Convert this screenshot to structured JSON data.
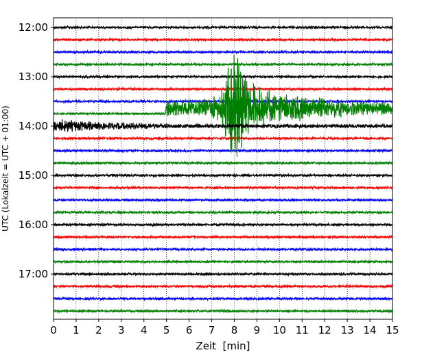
{
  "chart_data": {
    "type": "line",
    "title": "",
    "xlabel": "Zeit  [min]",
    "ylabel": "UTC (Lokalzeit = UTC + 01:00)",
    "xlim": [
      0,
      15
    ],
    "x_ticks": [
      0,
      1,
      2,
      3,
      4,
      5,
      6,
      7,
      8,
      9,
      10,
      11,
      12,
      13,
      14,
      15
    ],
    "y_tick_labels": [
      "12:00",
      "13:00",
      "14:00",
      "15:00",
      "16:00",
      "17:00"
    ],
    "grid": "vertical dotted at each minute",
    "trace_interval_minutes": 15,
    "trace_count": 24,
    "first_trace": "12:00",
    "colors_cycle": [
      "#000000",
      "#ff0000",
      "#0000ff",
      "#008000"
    ],
    "series": [
      {
        "trace": "13:45",
        "color": "#008000",
        "description_points": [
          {
            "x": 0,
            "y": 0
          },
          {
            "x": 4.95,
            "y": 0
          },
          {
            "x": 5.0,
            "y": 0.6
          },
          {
            "x": 6.5,
            "y": 0.7
          },
          {
            "x": 7.4,
            "y": 1.2
          },
          {
            "x": 7.8,
            "y": 4.0
          },
          {
            "x": 8.0,
            "y": 5.5
          },
          {
            "x": 8.4,
            "y": 3.5
          },
          {
            "x": 9.0,
            "y": 1.8
          },
          {
            "x": 10.0,
            "y": 1.2
          },
          {
            "x": 11.0,
            "y": 1.0
          },
          {
            "x": 12.0,
            "y": 0.8
          },
          {
            "x": 13.0,
            "y": 0.6
          },
          {
            "x": 15.0,
            "y": 0.5
          }
        ]
      },
      {
        "trace": "14:00",
        "color": "#000000",
        "description_points": [
          {
            "x": 0,
            "y": 0.6
          },
          {
            "x": 0.5,
            "y": 0.55
          },
          {
            "x": 1.0,
            "y": 0.45
          },
          {
            "x": 2.0,
            "y": 0.3
          },
          {
            "x": 4.0,
            "y": 0.2
          },
          {
            "x": 5.0,
            "y": 0.12
          },
          {
            "x": 15.0,
            "y": 0.1
          }
        ]
      }
    ]
  }
}
